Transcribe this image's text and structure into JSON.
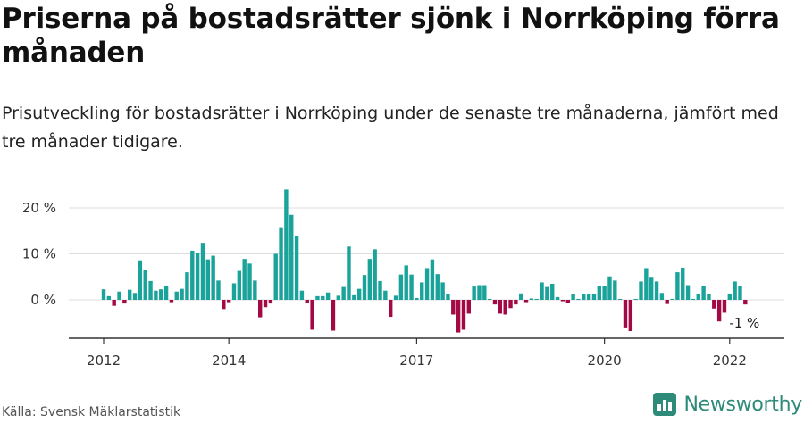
{
  "title": "Priserna på bostadsrätter sjönk i Norrköping förra månaden",
  "subtitle": "Prisutveckling för bostadsrätter i Norrköping under de senaste tre månaderna, jämfört med tre månader tidigare.",
  "source": "Källa: Svensk Mäklarstatistik",
  "brand": "Newsworthy",
  "colors": {
    "positive": "#1aa39a",
    "negative": "#a30a45",
    "grid": "#dddddd",
    "axis": "#333333",
    "brand": "#2e8b7a"
  },
  "chart_data": {
    "type": "bar",
    "title": "Priserna på bostadsrätter sjönk i Norrköping förra månaden",
    "ylabel": "",
    "xlabel": "",
    "ylim": [
      -8,
      25
    ],
    "y_ticks": [
      {
        "value": 20,
        "label": "20 %"
      },
      {
        "value": 10,
        "label": "10 %"
      },
      {
        "value": 0,
        "label": "0 %"
      }
    ],
    "x_ticks": [
      {
        "index": 0,
        "label": "2012"
      },
      {
        "index": 24,
        "label": "2014"
      },
      {
        "index": 60,
        "label": "2017"
      },
      {
        "index": 96,
        "label": "2020"
      },
      {
        "index": 120,
        "label": "2022"
      }
    ],
    "x_start": "2012-01",
    "annotation": {
      "index": 123,
      "label": "-1 %"
    },
    "values": [
      2.3,
      0.8,
      -1.3,
      1.8,
      -0.8,
      2.2,
      1.5,
      8.6,
      6.5,
      4.1,
      2.0,
      2.3,
      3.1,
      -0.5,
      1.8,
      2.4,
      6.0,
      10.7,
      10.3,
      12.4,
      8.8,
      9.6,
      4.2,
      -2.0,
      -0.5,
      3.6,
      6.3,
      8.9,
      7.9,
      4.2,
      -3.8,
      -1.6,
      -0.8,
      10.0,
      15.8,
      24.0,
      18.5,
      13.8,
      2.0,
      -0.6,
      -6.5,
      0.8,
      0.8,
      1.6,
      -6.7,
      0.9,
      2.8,
      11.6,
      1.0,
      2.4,
      5.4,
      8.9,
      11.0,
      4.1,
      2.0,
      -3.7,
      0.9,
      5.5,
      7.5,
      5.5,
      0.4,
      3.8,
      6.9,
      8.8,
      5.6,
      3.8,
      1.2,
      -3.2,
      -7.1,
      -6.5,
      -3.0,
      2.9,
      3.2,
      3.2,
      0.2,
      -1.0,
      -3.0,
      -3.2,
      -1.8,
      -1.0,
      1.4,
      -0.5,
      0.3,
      0.2,
      3.8,
      2.8,
      3.5,
      0.6,
      -0.3,
      -0.6,
      1.2,
      0.2,
      1.2,
      1.2,
      1.2,
      3.1,
      3.0,
      5.1,
      4.2,
      0.2,
      -6.0,
      -6.8,
      0.2,
      4.0,
      6.9,
      5.0,
      4.0,
      1.5,
      -0.9,
      0.2,
      6.0,
      7.0,
      3.2,
      0.2,
      1.2,
      3.0,
      1.2,
      -1.9,
      -4.7,
      -2.8,
      1.2,
      4.0,
      3.1,
      -1.0
    ]
  }
}
